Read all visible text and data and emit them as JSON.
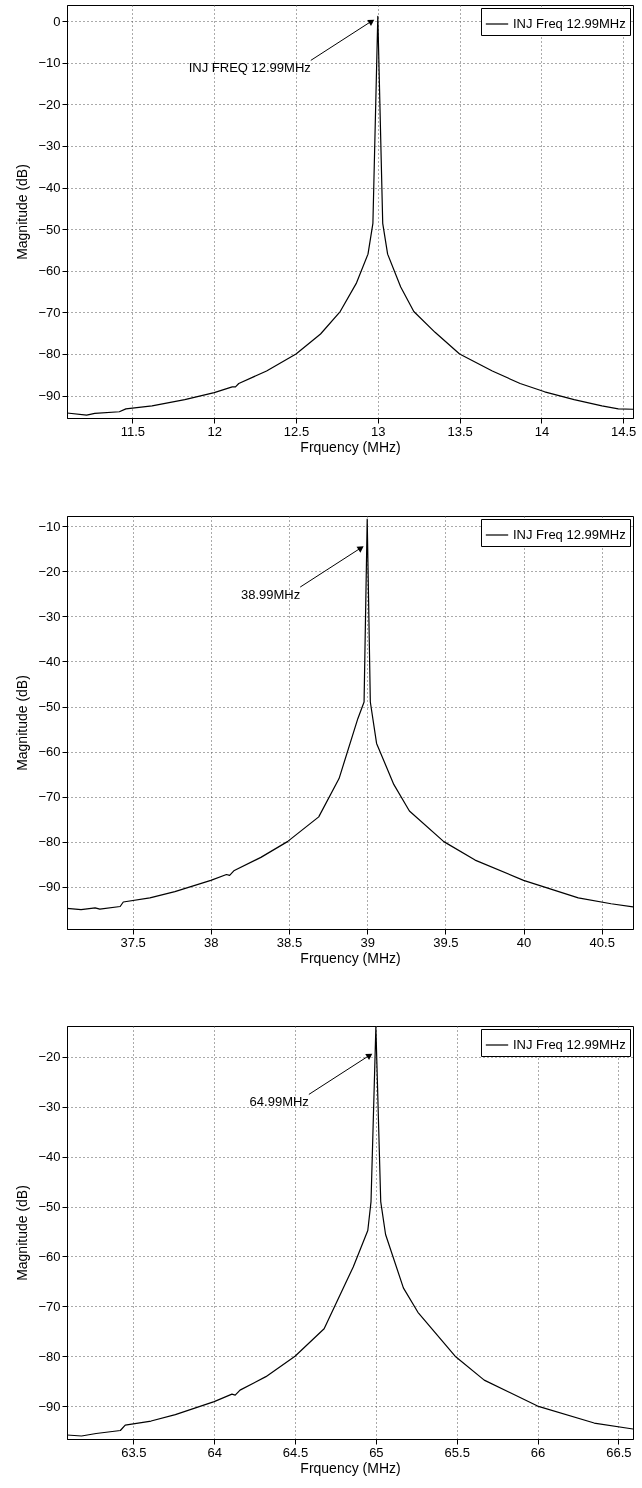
{
  "chart_data": [
    {
      "type": "line",
      "xlabel": "Frquency (MHz)",
      "ylabel": "Magnitude (dB)",
      "xlim": [
        11.1,
        14.56
      ],
      "ylim": [
        -95.4,
        3.9
      ],
      "xticks": [
        11.5,
        12,
        12.5,
        13,
        13.5,
        14,
        14.5
      ],
      "yticks": [
        -90,
        -80,
        -70,
        -60,
        -50,
        -40,
        -30,
        -20,
        -10,
        0
      ],
      "grid": true,
      "legend": "top right",
      "x": [
        11.1,
        11.22,
        11.27,
        11.42,
        11.46,
        11.62,
        11.82,
        12.0,
        12.11,
        12.13,
        12.15,
        12.32,
        12.5,
        12.65,
        12.77,
        12.87,
        12.94,
        12.97,
        13.0,
        13.03,
        13.06,
        13.14,
        13.22,
        13.35,
        13.5,
        13.7,
        13.87,
        14.02,
        14.2,
        14.37,
        14.47,
        14.56
      ],
      "series": [
        {
          "name": "INJ Freq 12.99MHz",
          "color": "#000000",
          "values": [
            -94.2,
            -94.7,
            -94.3,
            -93.9,
            -93.2,
            -92.5,
            -91.0,
            -89.3,
            -87.9,
            -87.9,
            -87.1,
            -84.1,
            -80.0,
            -75.2,
            -69.8,
            -62.9,
            -56.0,
            -48.6,
            1.2,
            -48.6,
            -56.0,
            -63.9,
            -69.8,
            -74.8,
            -80.0,
            -84.1,
            -87.1,
            -89.1,
            -91.0,
            -92.5,
            -93.2,
            -93.3
          ]
        }
      ],
      "annotations": [
        {
          "text": "INJ FREQ 12.99MHz",
          "x": 13.0,
          "y": 0.2
        }
      ]
    },
    {
      "type": "line",
      "xlabel": "Frquency (MHz)",
      "ylabel": "Magnitude (dB)",
      "xlim": [
        37.08,
        40.7
      ],
      "ylim": [
        -99.4,
        -7.7
      ],
      "xticks": [
        37.5,
        38,
        38.5,
        39,
        39.5,
        40,
        40.5
      ],
      "yticks": [
        -90,
        -80,
        -70,
        -60,
        -50,
        -40,
        -30,
        -20,
        -10
      ],
      "grid": true,
      "legend": "top right",
      "x": [
        37.08,
        37.17,
        37.26,
        37.29,
        37.42,
        37.44,
        37.61,
        37.77,
        38.0,
        38.1,
        38.12,
        38.15,
        38.32,
        38.49,
        38.69,
        38.82,
        38.94,
        38.98,
        39.0,
        39.02,
        39.06,
        39.17,
        39.27,
        39.49,
        39.69,
        40.0,
        40.35,
        40.56,
        40.7
      ],
      "series": [
        {
          "name": "INJ Freq 12.99MHz",
          "color": "#000000",
          "values": [
            -94.8,
            -95.1,
            -94.7,
            -95.0,
            -94.4,
            -93.4,
            -92.5,
            -91.1,
            -88.6,
            -87.3,
            -87.5,
            -86.4,
            -83.5,
            -80.0,
            -74.5,
            -66.0,
            -52.7,
            -49.0,
            -8.4,
            -49.0,
            -58.2,
            -67.3,
            -73.2,
            -80.0,
            -84.1,
            -88.6,
            -92.5,
            -93.8,
            -94.5
          ]
        }
      ],
      "annotations": [
        {
          "text": "38.99MHz",
          "x": 39.0,
          "y": -14.6
        }
      ]
    },
    {
      "type": "line",
      "xlabel": "Frquency (MHz)",
      "ylabel": "Magnitude (dB)",
      "xlim": [
        63.09,
        66.59
      ],
      "ylim": [
        -96.6,
        -13.8
      ],
      "xticks": [
        63.5,
        64,
        64.5,
        65,
        65.5,
        66,
        66.5
      ],
      "yticks": [
        -90,
        -80,
        -70,
        -60,
        -50,
        -40,
        -30,
        -20
      ],
      "grid": true,
      "legend": "top right",
      "x": [
        63.09,
        63.18,
        63.27,
        63.42,
        63.45,
        63.61,
        63.76,
        64.0,
        64.11,
        64.13,
        64.16,
        64.32,
        64.5,
        64.68,
        64.86,
        64.95,
        64.97,
        65.0,
        65.03,
        65.06,
        65.17,
        65.26,
        65.49,
        65.67,
        66.0,
        66.35,
        66.59
      ],
      "series": [
        {
          "name": "INJ Freq 12.99MHz",
          "color": "#000000",
          "values": [
            -95.8,
            -96.0,
            -95.5,
            -94.9,
            -93.8,
            -93.0,
            -91.7,
            -89.1,
            -87.6,
            -87.8,
            -86.8,
            -84.1,
            -80.0,
            -74.5,
            -62.1,
            -54.8,
            -49.0,
            -14.0,
            -49.0,
            -55.6,
            -66.3,
            -71.2,
            -80.0,
            -84.8,
            -90.0,
            -93.4,
            -94.6
          ]
        }
      ],
      "annotations": [
        {
          "text": "64.99MHz",
          "x": 65.0,
          "y": -19.5
        }
      ]
    }
  ]
}
